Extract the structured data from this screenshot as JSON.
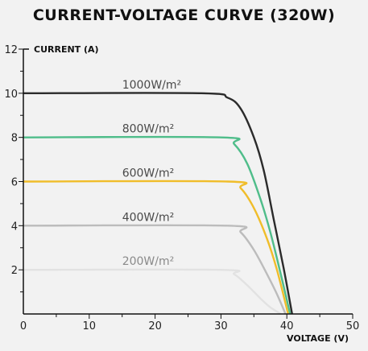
{
  "chart_data": {
    "type": "line",
    "title": "CURRENT-VOLTAGE CURVE (320W)",
    "xlabel": "VOLTAGE (V)",
    "ylabel": "CURRENT (A)",
    "xlim": [
      0,
      50
    ],
    "ylim": [
      0,
      12
    ],
    "xticks": [
      0,
      10,
      20,
      30,
      40,
      50
    ],
    "yticks": [
      2,
      4,
      6,
      8,
      10,
      12
    ],
    "grid": false,
    "series": [
      {
        "name": "1000W/m²",
        "color": "#2b2b2b",
        "label_x": 15,
        "x": [
          0,
          27,
          31,
          33,
          35,
          36.5,
          38,
          39.5,
          40.8
        ],
        "y": [
          10,
          10,
          9.8,
          9.3,
          8,
          6.5,
          4.3,
          2.1,
          0
        ]
      },
      {
        "name": "800W/m²",
        "color": "#4fbd8a",
        "label_x": 15,
        "x": [
          0,
          30,
          32,
          34,
          36,
          37.5,
          39,
          40.5
        ],
        "y": [
          8,
          8,
          7.7,
          6.8,
          5.2,
          3.7,
          1.9,
          0
        ]
      },
      {
        "name": "600W/m²",
        "color": "#f0bd2a",
        "label_x": 15,
        "x": [
          0,
          31,
          33,
          35,
          37,
          38.5,
          40.2
        ],
        "y": [
          6,
          6,
          5.7,
          4.8,
          3.4,
          2.0,
          0
        ]
      },
      {
        "name": "400W/m²",
        "color": "#bcbcbc",
        "label_x": 15,
        "x": [
          0,
          31,
          33,
          35,
          37,
          38.5,
          39.8
        ],
        "y": [
          4,
          4,
          3.7,
          2.9,
          1.8,
          0.9,
          0
        ]
      },
      {
        "name": "200W/m²",
        "color": "#e2e2e2",
        "label_x": 15,
        "x": [
          0,
          30,
          32,
          34,
          36,
          37.5,
          39.1
        ],
        "y": [
          2,
          2,
          1.8,
          1.3,
          0.7,
          0.3,
          0
        ]
      }
    ]
  }
}
